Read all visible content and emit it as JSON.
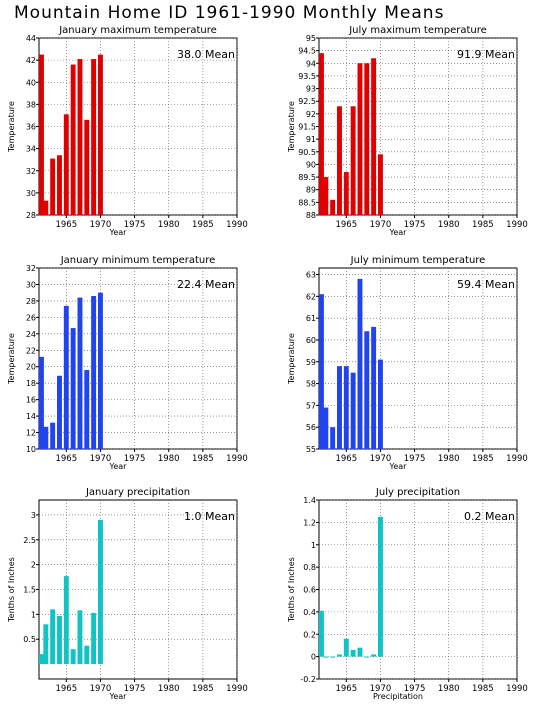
{
  "title": "Mountain Home ID  1961-1990 Monthly Means",
  "chart_data": [
    {
      "type": "bar",
      "title": "January maximum temperature",
      "ylabel": "Temperature",
      "xlabel": "Year",
      "annotation": "38.0 Mean",
      "color": "#e00000",
      "xlim": [
        1961,
        1990
      ],
      "xticks": [
        "1965",
        "1970",
        "1975",
        "1980",
        "1985",
        "1990"
      ],
      "ylim": [
        28,
        44
      ],
      "yticks": [
        "28",
        "30",
        "32",
        "34",
        "36",
        "38",
        "40",
        "42",
        "44"
      ],
      "x": [
        1961,
        1962,
        1963,
        1964,
        1965,
        1966,
        1967,
        1968,
        1969,
        1970
      ],
      "values": [
        42.5,
        29.3,
        33.1,
        33.4,
        37.1,
        41.6,
        42.1,
        36.6,
        42.1,
        42.5
      ]
    },
    {
      "type": "bar",
      "title": "July maximum temperature",
      "ylabel": "Temperature",
      "xlabel": "Year",
      "annotation": "91.9 Mean",
      "color": "#e00000",
      "xlim": [
        1961,
        1990
      ],
      "xticks": [
        "1965",
        "1970",
        "1975",
        "1980",
        "1985",
        "1990"
      ],
      "ylim": [
        88,
        95
      ],
      "yticks": [
        "88",
        "88.5",
        "89",
        "89.5",
        "90",
        "90.5",
        "91",
        "91.5",
        "92",
        "92.5",
        "93",
        "93.5",
        "94",
        "94.5",
        "95"
      ],
      "x": [
        1961,
        1962,
        1963,
        1964,
        1965,
        1966,
        1967,
        1968,
        1969,
        1970
      ],
      "values": [
        94.4,
        89.5,
        88.6,
        92.3,
        89.7,
        92.3,
        94.0,
        94.0,
        94.2,
        90.4
      ]
    },
    {
      "type": "bar",
      "title": "January minimum temperature",
      "ylabel": "Temperature",
      "xlabel": "Year",
      "annotation": "22.4 Mean",
      "color": "#2244ee",
      "xlim": [
        1961,
        1990
      ],
      "xticks": [
        "1965",
        "1970",
        "1975",
        "1980",
        "1985",
        "1990"
      ],
      "ylim": [
        10,
        32
      ],
      "yticks": [
        "10",
        "12",
        "14",
        "16",
        "18",
        "20",
        "22",
        "24",
        "26",
        "28",
        "30",
        "32"
      ],
      "x": [
        1961,
        1962,
        1963,
        1964,
        1965,
        1966,
        1967,
        1968,
        1969,
        1970
      ],
      "values": [
        21.2,
        12.7,
        13.2,
        18.9,
        27.4,
        24.7,
        28.4,
        19.6,
        28.6,
        29.0
      ]
    },
    {
      "type": "bar",
      "title": "July minimum temperature",
      "ylabel": "Temperature",
      "xlabel": "Year",
      "annotation": "59.4 Mean",
      "color": "#2244ee",
      "xlim": [
        1961,
        1990
      ],
      "xticks": [
        "1965",
        "1970",
        "1975",
        "1980",
        "1985",
        "1990"
      ],
      "ylim": [
        55,
        63.3
      ],
      "yticks": [
        "55",
        "56",
        "57",
        "58",
        "59",
        "60",
        "61",
        "62",
        "63"
      ],
      "x": [
        1961,
        1962,
        1963,
        1964,
        1965,
        1966,
        1967,
        1968,
        1969,
        1970
      ],
      "values": [
        62.1,
        56.9,
        56.0,
        58.8,
        58.8,
        58.5,
        62.8,
        60.4,
        60.6,
        59.1
      ]
    },
    {
      "type": "bar",
      "title": "January precipitation",
      "ylabel": "Tenths of Inches",
      "xlabel": "Year",
      "annotation": "1.0 Mean",
      "color": "#11c4c4",
      "xlim": [
        1961,
        1990
      ],
      "xticks": [
        "1965",
        "1970",
        "1975",
        "1980",
        "1985",
        "1990"
      ],
      "ylim": [
        -0.3,
        3.3
      ],
      "yticks": [
        "0.5",
        "1",
        "1.5",
        "2",
        "2.5",
        "3"
      ],
      "ytick_values": [
        0.5,
        1,
        1.5,
        2,
        2.5,
        3
      ],
      "x": [
        1961,
        1962,
        1963,
        1964,
        1965,
        1966,
        1967,
        1968,
        1969,
        1970
      ],
      "values": [
        0.2,
        0.8,
        1.1,
        0.97,
        1.77,
        0.3,
        1.08,
        0.37,
        1.03,
        2.9
      ]
    },
    {
      "type": "bar",
      "title": "July precipitation",
      "ylabel": "Tenths of Inches",
      "xlabel": "Precipitation",
      "annotation": "0.2 Mean",
      "color": "#11c4c4",
      "xlim": [
        1961,
        1990
      ],
      "xticks": [
        "1965",
        "1970",
        "1975",
        "1980",
        "1985",
        "1990"
      ],
      "ylim": [
        -0.2,
        1.4
      ],
      "yticks": [
        "-0.2",
        "0",
        "0.2",
        "0.4",
        "0.6",
        "0.8",
        "1",
        "1.2",
        "1.4"
      ],
      "x": [
        1961,
        1962,
        1963,
        1964,
        1965,
        1966,
        1967,
        1968,
        1969,
        1970
      ],
      "values": [
        0.41,
        0.0,
        0.0,
        0.02,
        0.16,
        0.06,
        0.08,
        0.0,
        0.02,
        1.25
      ]
    }
  ]
}
